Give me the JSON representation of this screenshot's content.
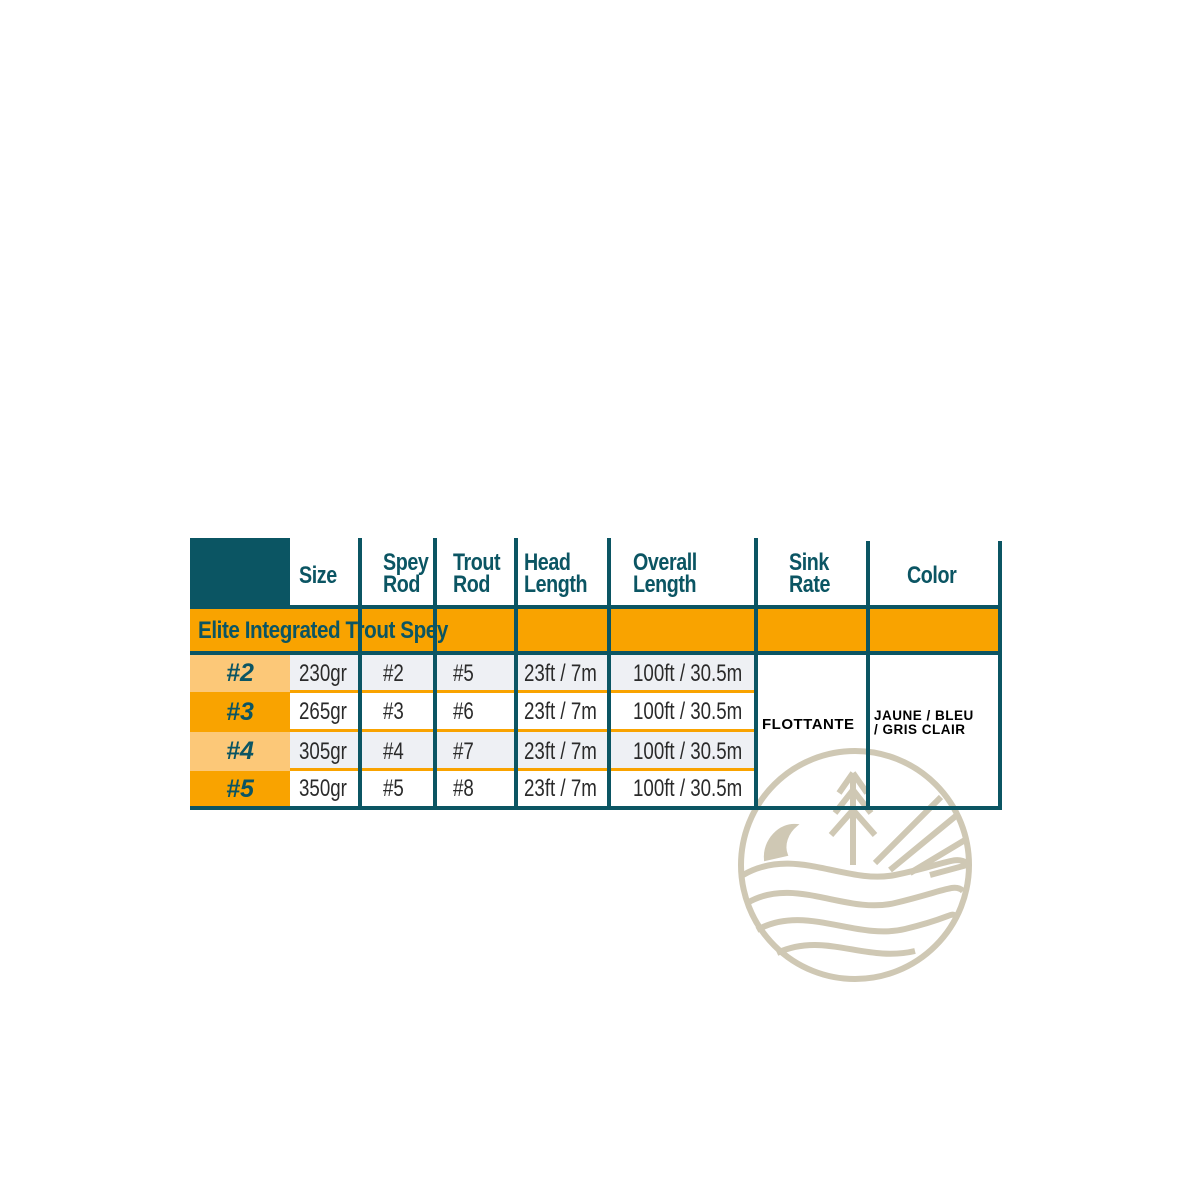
{
  "table": {
    "headers": [
      "",
      "Size",
      "Spey Rod",
      "Trout Rod",
      "Head Length",
      "Overall Length",
      "Sink Rate",
      "Color"
    ],
    "header_lines": {
      "size": [
        "Size"
      ],
      "spey_rod": [
        "Spey",
        "Rod"
      ],
      "trout_rod": [
        "Trout",
        "Rod"
      ],
      "head_length": [
        "Head",
        "Length"
      ],
      "overall_length": [
        "Overall",
        "Length"
      ],
      "sink_rate": [
        "Sink",
        "Rate"
      ],
      "color": [
        "Color"
      ]
    },
    "product_name": "Elite Integrated Trout Spey",
    "rows": [
      {
        "line": "#2",
        "size": "230gr",
        "spey_rod": "#2",
        "trout_rod": "#5",
        "head_length": "23ft / 7m",
        "overall_length": "100ft / 30.5m"
      },
      {
        "line": "#3",
        "size": "265gr",
        "spey_rod": "#3",
        "trout_rod": "#6",
        "head_length": "23ft / 7m",
        "overall_length": "100ft / 30.5m"
      },
      {
        "line": "#4",
        "size": "305gr",
        "spey_rod": "#4",
        "trout_rod": "#7",
        "head_length": "23ft / 7m",
        "overall_length": "100ft / 30.5m"
      },
      {
        "line": "#5",
        "size": "350gr",
        "spey_rod": "#5",
        "trout_rod": "#8",
        "head_length": "23ft / 7m",
        "overall_length": "100ft / 30.5m"
      }
    ],
    "sink_rate": "FLOTTANTE",
    "color_lines": [
      "JAUNE / BLEU",
      "/ GRIS CLAIR"
    ]
  },
  "colors": {
    "teal": "#0b5563",
    "orange": "#f9a300",
    "light_orange": "#fcc878",
    "row_gray": "#eef0f4",
    "logo": "#cfc8b4"
  },
  "logo": {
    "icon": "nature-badge-icon"
  }
}
